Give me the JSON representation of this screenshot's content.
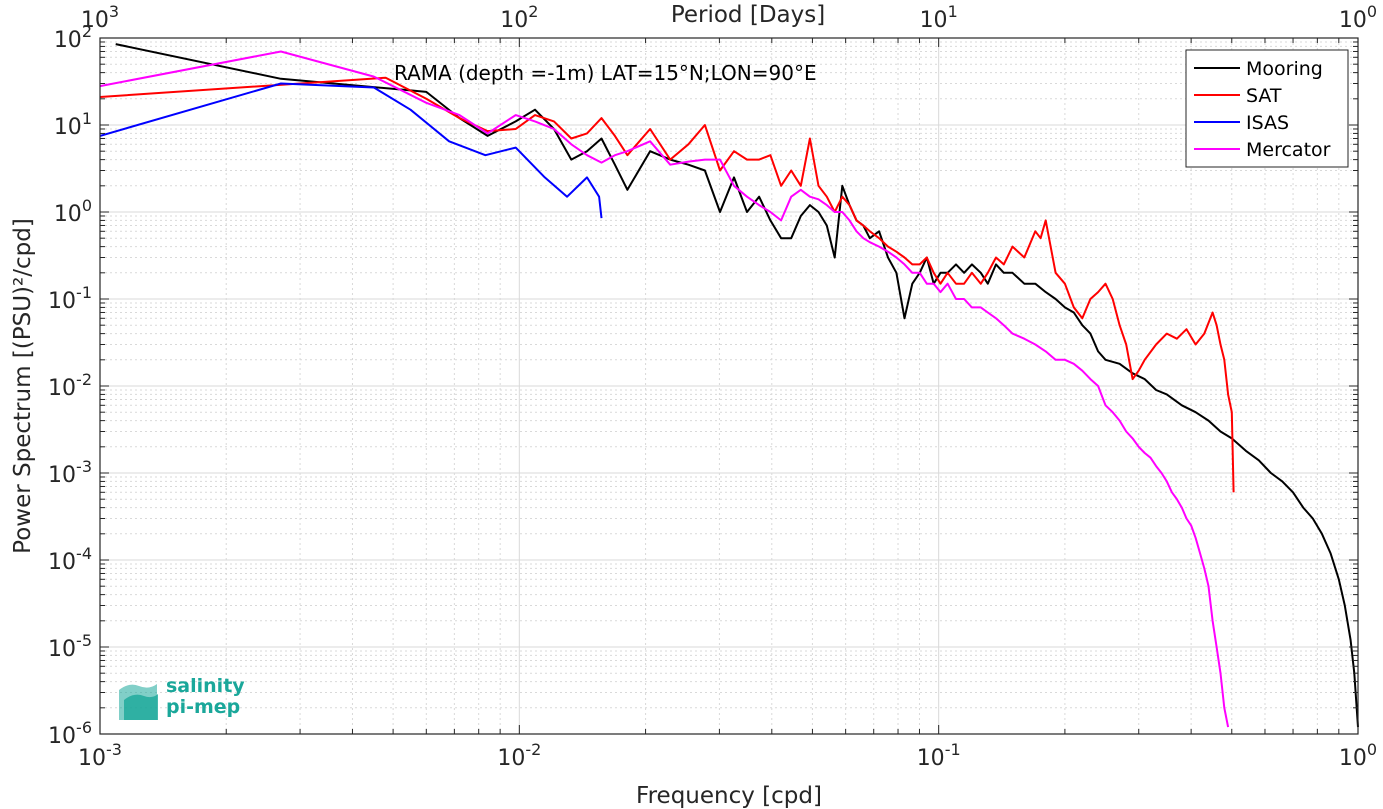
{
  "chart_data": {
    "type": "line",
    "x_scale": "log",
    "y_scale": "log",
    "xlim": [
      0.001,
      1
    ],
    "ylim": [
      1e-06,
      100
    ],
    "grid": true,
    "xlabel": "Frequency [cpd]",
    "ylabel": "Power Spectrum [(PSU)²/cpd]",
    "top_axis_label": "Period [Days]",
    "annotation": "RAMA (depth =-1m) LAT=15°N;LON=90°E",
    "legend_position": "top-right",
    "x_ticks": [
      {
        "value": 0.001,
        "base": "10",
        "exp": "-3"
      },
      {
        "value": 0.01,
        "base": "10",
        "exp": "-2"
      },
      {
        "value": 0.1,
        "base": "10",
        "exp": "-1"
      },
      {
        "value": 1,
        "base": "10",
        "exp": "0"
      }
    ],
    "top_ticks": [
      {
        "value": 0.001,
        "base": "10",
        "exp": "3"
      },
      {
        "value": 0.01,
        "base": "10",
        "exp": "2"
      },
      {
        "value": 0.1,
        "base": "10",
        "exp": "1"
      },
      {
        "value": 1,
        "base": "10",
        "exp": "0"
      }
    ],
    "y_ticks": [
      {
        "value": 100,
        "base": "10",
        "exp": "2"
      },
      {
        "value": 10,
        "base": "10",
        "exp": "1"
      },
      {
        "value": 1,
        "base": "10",
        "exp": "0"
      },
      {
        "value": 0.1,
        "base": "10",
        "exp": "-1"
      },
      {
        "value": 0.01,
        "base": "10",
        "exp": "-2"
      },
      {
        "value": 0.001,
        "base": "10",
        "exp": "-3"
      },
      {
        "value": 0.0001,
        "base": "10",
        "exp": "-4"
      },
      {
        "value": 1e-05,
        "base": "10",
        "exp": "-5"
      },
      {
        "value": 1e-06,
        "base": "10",
        "exp": "-6"
      }
    ],
    "series": [
      {
        "name": "Mooring",
        "color": "#000000",
        "points": [
          [
            0.00109,
            85
          ],
          [
            0.0027,
            34
          ],
          [
            0.0055,
            25
          ],
          [
            0.006,
            24
          ],
          [
            0.0072,
            12
          ],
          [
            0.0084,
            7.5
          ],
          [
            0.0098,
            11
          ],
          [
            0.0109,
            15
          ],
          [
            0.0121,
            9
          ],
          [
            0.0133,
            4
          ],
          [
            0.0145,
            5
          ],
          [
            0.0157,
            7
          ],
          [
            0.0169,
            3.5
          ],
          [
            0.0181,
            1.8
          ],
          [
            0.0205,
            5
          ],
          [
            0.0229,
            4
          ],
          [
            0.0253,
            3.5
          ],
          [
            0.0277,
            3
          ],
          [
            0.0301,
            1
          ],
          [
            0.0325,
            2.5
          ],
          [
            0.0349,
            1
          ],
          [
            0.0373,
            1.5
          ],
          [
            0.0397,
            0.8
          ],
          [
            0.0421,
            0.5
          ],
          [
            0.0445,
            0.5
          ],
          [
            0.0469,
            0.9
          ],
          [
            0.0493,
            1.2
          ],
          [
            0.0517,
            1
          ],
          [
            0.0541,
            0.7
          ],
          [
            0.0565,
            0.3
          ],
          [
            0.0589,
            2
          ],
          [
            0.0613,
            1.2
          ],
          [
            0.0637,
            0.8
          ],
          [
            0.0661,
            0.7
          ],
          [
            0.0685,
            0.5
          ],
          [
            0.0721,
            0.6
          ],
          [
            0.0757,
            0.3
          ],
          [
            0.0793,
            0.2
          ],
          [
            0.0829,
            0.06
          ],
          [
            0.0865,
            0.15
          ],
          [
            0.0901,
            0.2
          ],
          [
            0.0937,
            0.3
          ],
          [
            0.0973,
            0.15
          ],
          [
            0.101,
            0.2
          ],
          [
            0.105,
            0.2
          ],
          [
            0.11,
            0.25
          ],
          [
            0.115,
            0.2
          ],
          [
            0.12,
            0.25
          ],
          [
            0.126,
            0.2
          ],
          [
            0.131,
            0.15
          ],
          [
            0.137,
            0.25
          ],
          [
            0.143,
            0.2
          ],
          [
            0.15,
            0.2
          ],
          [
            0.16,
            0.15
          ],
          [
            0.17,
            0.15
          ],
          [
            0.18,
            0.12
          ],
          [
            0.19,
            0.1
          ],
          [
            0.2,
            0.08
          ],
          [
            0.21,
            0.07
          ],
          [
            0.22,
            0.05
          ],
          [
            0.23,
            0.04
          ],
          [
            0.24,
            0.025
          ],
          [
            0.25,
            0.02
          ],
          [
            0.27,
            0.018
          ],
          [
            0.29,
            0.014
          ],
          [
            0.31,
            0.012
          ],
          [
            0.33,
            0.009
          ],
          [
            0.35,
            0.008
          ],
          [
            0.38,
            0.006
          ],
          [
            0.41,
            0.005
          ],
          [
            0.44,
            0.004
          ],
          [
            0.47,
            0.003
          ],
          [
            0.5,
            0.0025
          ],
          [
            0.54,
            0.0018
          ],
          [
            0.58,
            0.0014
          ],
          [
            0.62,
            0.001
          ],
          [
            0.66,
            0.0008
          ],
          [
            0.7,
            0.0006
          ],
          [
            0.74,
            0.0004
          ],
          [
            0.78,
            0.0003
          ],
          [
            0.82,
            0.0002
          ],
          [
            0.86,
            0.00012
          ],
          [
            0.9,
            6e-05
          ],
          [
            0.93,
            3e-05
          ],
          [
            0.96,
            1.2e-05
          ],
          [
            0.98,
            5e-06
          ],
          [
            1.0,
            1.2e-06
          ]
        ]
      },
      {
        "name": "SAT",
        "color": "#ff0000",
        "points": [
          [
            0.001,
            21
          ],
          [
            0.0048,
            35
          ],
          [
            0.006,
            20
          ],
          [
            0.0072,
            12
          ],
          [
            0.0084,
            8.5
          ],
          [
            0.0098,
            9
          ],
          [
            0.0109,
            13
          ],
          [
            0.0121,
            11
          ],
          [
            0.0133,
            7
          ],
          [
            0.0145,
            8
          ],
          [
            0.0157,
            12
          ],
          [
            0.0169,
            7.5
          ],
          [
            0.0181,
            4.5
          ],
          [
            0.0205,
            9
          ],
          [
            0.0229,
            4
          ],
          [
            0.0253,
            6
          ],
          [
            0.0277,
            10
          ],
          [
            0.0301,
            3
          ],
          [
            0.0325,
            5
          ],
          [
            0.0349,
            4
          ],
          [
            0.0373,
            4
          ],
          [
            0.0397,
            4.5
          ],
          [
            0.0421,
            2
          ],
          [
            0.0445,
            3
          ],
          [
            0.0469,
            2
          ],
          [
            0.0493,
            7
          ],
          [
            0.0517,
            2
          ],
          [
            0.0541,
            1.5
          ],
          [
            0.0565,
            1
          ],
          [
            0.0589,
            1.5
          ],
          [
            0.0613,
            1.2
          ],
          [
            0.0637,
            0.8
          ],
          [
            0.0661,
            0.7
          ],
          [
            0.0685,
            0.6
          ],
          [
            0.0721,
            0.5
          ],
          [
            0.0757,
            0.4
          ],
          [
            0.0793,
            0.35
          ],
          [
            0.0829,
            0.3
          ],
          [
            0.0865,
            0.25
          ],
          [
            0.0901,
            0.25
          ],
          [
            0.0937,
            0.3
          ],
          [
            0.0973,
            0.2
          ],
          [
            0.101,
            0.15
          ],
          [
            0.105,
            0.2
          ],
          [
            0.11,
            0.15
          ],
          [
            0.115,
            0.15
          ],
          [
            0.12,
            0.2
          ],
          [
            0.126,
            0.15
          ],
          [
            0.131,
            0.2
          ],
          [
            0.137,
            0.3
          ],
          [
            0.143,
            0.25
          ],
          [
            0.15,
            0.4
          ],
          [
            0.16,
            0.3
          ],
          [
            0.17,
            0.6
          ],
          [
            0.175,
            0.5
          ],
          [
            0.18,
            0.8
          ],
          [
            0.19,
            0.2
          ],
          [
            0.2,
            0.15
          ],
          [
            0.21,
            0.08
          ],
          [
            0.22,
            0.06
          ],
          [
            0.23,
            0.1
          ],
          [
            0.24,
            0.12
          ],
          [
            0.25,
            0.15
          ],
          [
            0.26,
            0.1
          ],
          [
            0.27,
            0.05
          ],
          [
            0.28,
            0.03
          ],
          [
            0.29,
            0.012
          ],
          [
            0.3,
            0.015
          ],
          [
            0.31,
            0.02
          ],
          [
            0.33,
            0.03
          ],
          [
            0.35,
            0.04
          ],
          [
            0.37,
            0.035
          ],
          [
            0.39,
            0.045
          ],
          [
            0.41,
            0.03
          ],
          [
            0.43,
            0.04
          ],
          [
            0.45,
            0.07
          ],
          [
            0.46,
            0.05
          ],
          [
            0.47,
            0.03
          ],
          [
            0.48,
            0.02
          ],
          [
            0.49,
            0.008
          ],
          [
            0.5,
            0.005
          ],
          [
            0.505,
            0.0006
          ]
        ]
      },
      {
        "name": "ISAS",
        "color": "#0000ff",
        "points": [
          [
            0.001,
            7.5
          ],
          [
            0.0027,
            30
          ],
          [
            0.0045,
            27
          ],
          [
            0.0055,
            15
          ],
          [
            0.0068,
            6.5
          ],
          [
            0.0083,
            4.5
          ],
          [
            0.0098,
            5.5
          ],
          [
            0.0115,
            2.5
          ],
          [
            0.013,
            1.5
          ],
          [
            0.0145,
            2.5
          ],
          [
            0.0155,
            1.5
          ],
          [
            0.0157,
            0.85
          ]
        ]
      },
      {
        "name": "Mercator",
        "color": "#ff00ff",
        "points": [
          [
            0.001,
            28
          ],
          [
            0.0027,
            70
          ],
          [
            0.0045,
            36
          ],
          [
            0.006,
            18
          ],
          [
            0.0072,
            13
          ],
          [
            0.0084,
            8
          ],
          [
            0.0098,
            13
          ],
          [
            0.0109,
            11
          ],
          [
            0.0121,
            9
          ],
          [
            0.0133,
            6
          ],
          [
            0.0145,
            4.5
          ],
          [
            0.0157,
            3.7
          ],
          [
            0.0169,
            4.5
          ],
          [
            0.0181,
            5
          ],
          [
            0.0205,
            6.5
          ],
          [
            0.0229,
            3.5
          ],
          [
            0.0253,
            3.8
          ],
          [
            0.0277,
            4
          ],
          [
            0.0301,
            4
          ],
          [
            0.0325,
            2
          ],
          [
            0.0349,
            1.5
          ],
          [
            0.0373,
            1.2
          ],
          [
            0.0397,
            1
          ],
          [
            0.0421,
            0.8
          ],
          [
            0.0445,
            1.5
          ],
          [
            0.0469,
            1.8
          ],
          [
            0.0493,
            1.5
          ],
          [
            0.0517,
            1.4
          ],
          [
            0.0541,
            1.2
          ],
          [
            0.0565,
            1
          ],
          [
            0.0589,
            1
          ],
          [
            0.0613,
            0.8
          ],
          [
            0.0637,
            0.6
          ],
          [
            0.0661,
            0.5
          ],
          [
            0.0685,
            0.45
          ],
          [
            0.0721,
            0.4
          ],
          [
            0.0757,
            0.35
          ],
          [
            0.0793,
            0.3
          ],
          [
            0.0829,
            0.25
          ],
          [
            0.0865,
            0.2
          ],
          [
            0.0901,
            0.2
          ],
          [
            0.0937,
            0.15
          ],
          [
            0.0973,
            0.15
          ],
          [
            0.101,
            0.12
          ],
          [
            0.105,
            0.15
          ],
          [
            0.11,
            0.1
          ],
          [
            0.115,
            0.1
          ],
          [
            0.12,
            0.08
          ],
          [
            0.126,
            0.08
          ],
          [
            0.131,
            0.07
          ],
          [
            0.137,
            0.06
          ],
          [
            0.143,
            0.05
          ],
          [
            0.15,
            0.04
          ],
          [
            0.16,
            0.035
          ],
          [
            0.17,
            0.03
          ],
          [
            0.18,
            0.025
          ],
          [
            0.19,
            0.02
          ],
          [
            0.2,
            0.02
          ],
          [
            0.21,
            0.018
          ],
          [
            0.22,
            0.015
          ],
          [
            0.23,
            0.012
          ],
          [
            0.24,
            0.01
          ],
          [
            0.25,
            0.006
          ],
          [
            0.26,
            0.005
          ],
          [
            0.27,
            0.004
          ],
          [
            0.28,
            0.003
          ],
          [
            0.29,
            0.0025
          ],
          [
            0.3,
            0.002
          ],
          [
            0.31,
            0.0017
          ],
          [
            0.32,
            0.0015
          ],
          [
            0.33,
            0.0012
          ],
          [
            0.34,
            0.001
          ],
          [
            0.35,
            0.0008
          ],
          [
            0.36,
            0.0006
          ],
          [
            0.37,
            0.0005
          ],
          [
            0.38,
            0.0004
          ],
          [
            0.39,
            0.0003
          ],
          [
            0.4,
            0.00025
          ],
          [
            0.41,
            0.00018
          ],
          [
            0.42,
            0.00012
          ],
          [
            0.43,
            8e-05
          ],
          [
            0.44,
            5e-05
          ],
          [
            0.45,
            2e-05
          ],
          [
            0.46,
            1e-05
          ],
          [
            0.47,
            5e-06
          ],
          [
            0.48,
            2e-06
          ],
          [
            0.49,
            1.2e-06
          ]
        ]
      }
    ]
  },
  "logo": {
    "line1": "salinity",
    "line2": "pi-mep"
  }
}
